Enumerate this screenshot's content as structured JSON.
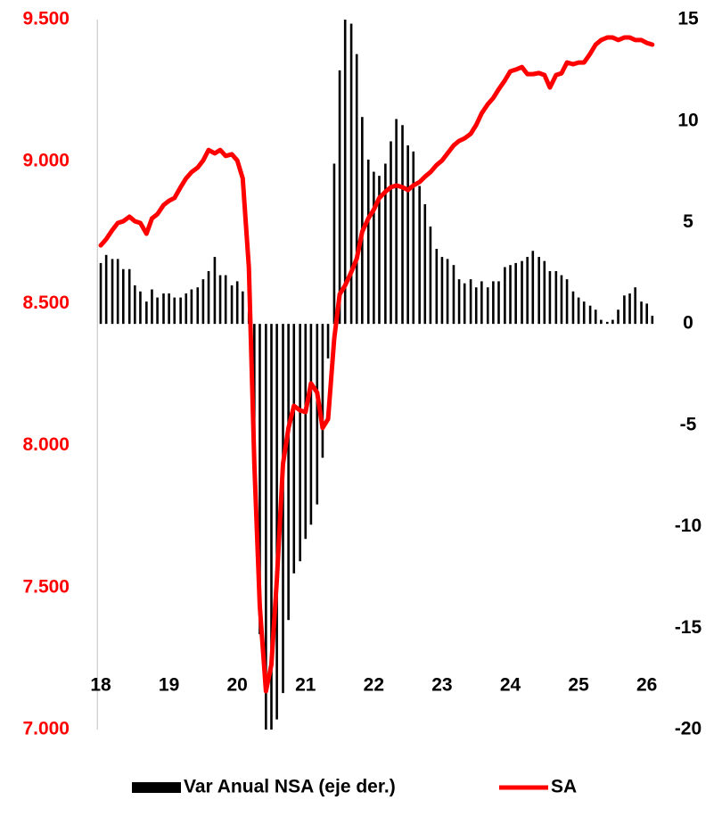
{
  "chart_data": {
    "type": "combo",
    "x": [
      18.0,
      18.08,
      18.17,
      18.25,
      18.33,
      18.42,
      18.5,
      18.58,
      18.67,
      18.75,
      18.83,
      18.92,
      19.0,
      19.08,
      19.17,
      19.25,
      19.33,
      19.42,
      19.5,
      19.58,
      19.67,
      19.75,
      19.83,
      19.92,
      20.0,
      20.08,
      20.17,
      20.25,
      20.33,
      20.42,
      20.5,
      20.58,
      20.67,
      20.75,
      20.83,
      20.92,
      21.0,
      21.08,
      21.17,
      21.25,
      21.33,
      21.42,
      21.5,
      21.58,
      21.67,
      21.75,
      21.83,
      21.92,
      22.0,
      22.08,
      22.17,
      22.25,
      22.33,
      22.42,
      22.5,
      22.58,
      22.67,
      22.75,
      22.83,
      22.92,
      23.0,
      23.08,
      23.17,
      23.25,
      23.33,
      23.42,
      23.5,
      23.58,
      23.67,
      23.75,
      23.83,
      23.92,
      24.0,
      24.08,
      24.17,
      24.25,
      24.33,
      24.42,
      24.5,
      24.58,
      24.67,
      24.75,
      24.83,
      24.92,
      25.0,
      25.08,
      25.17,
      25.25,
      25.33,
      25.42,
      25.5,
      25.58,
      25.67,
      25.75,
      25.83,
      25.92,
      26.0,
      26.08
    ],
    "series": [
      {
        "name": "Var Anual NSA (eje der.)",
        "type": "bar",
        "axis": "y2",
        "color": "#000000",
        "values": [
          3.0,
          3.4,
          3.2,
          3.2,
          2.7,
          2.7,
          1.9,
          1.6,
          1.1,
          1.7,
          1.3,
          1.5,
          1.5,
          1.3,
          1.3,
          1.5,
          1.7,
          1.8,
          2.2,
          2.6,
          3.3,
          2.4,
          2.4,
          1.9,
          2.1,
          1.6,
          0.6,
          -7.6,
          -15.3,
          -20,
          -20,
          -19.5,
          -18.2,
          -14.6,
          -12.3,
          -11.7,
          -10.6,
          -9.9,
          -8.9,
          -6.6,
          -1.7,
          7.9,
          12.5,
          15,
          14.8,
          13.3,
          10.2,
          8.1,
          7.5,
          7.3,
          7.9,
          9.0,
          10.1,
          9.8,
          8.8,
          8.5,
          6.8,
          5.9,
          4.8,
          3.7,
          3.3,
          3.2,
          2.9,
          2.2,
          2.0,
          2.2,
          1.8,
          2.1,
          1.8,
          2.1,
          2.1,
          2.8,
          2.9,
          3.0,
          3.1,
          3.3,
          3.6,
          3.3,
          3.1,
          2.6,
          2.6,
          2.4,
          2.2,
          1.6,
          1.3,
          1.1,
          0.9,
          0.7,
          0.2,
          0.1,
          0.2,
          0.7,
          1.4,
          1.5,
          1.8,
          1.1,
          1.0,
          0.4
        ]
      },
      {
        "name": "SA",
        "type": "line",
        "axis": "y",
        "color": "#ff0000",
        "values": [
          8705,
          8727,
          8759,
          8784,
          8790,
          8806,
          8790,
          8784,
          8746,
          8800,
          8815,
          8847,
          8862,
          8872,
          8910,
          8941,
          8963,
          8979,
          9004,
          9041,
          9029,
          9041,
          9020,
          9026,
          9004,
          8941,
          8627,
          7936,
          7434,
          7135,
          7229,
          7528,
          7936,
          8062,
          8140,
          8124,
          8118,
          8219,
          8187,
          8062,
          8093,
          8376,
          8533,
          8564,
          8611,
          8658,
          8753,
          8800,
          8831,
          8872,
          8894,
          8910,
          8916,
          8910,
          8900,
          8916,
          8928,
          8947,
          8963,
          8988,
          9004,
          9029,
          9057,
          9073,
          9082,
          9098,
          9129,
          9170,
          9202,
          9224,
          9255,
          9286,
          9318,
          9324,
          9333,
          9308,
          9308,
          9312,
          9305,
          9261,
          9305,
          9311,
          9349,
          9343,
          9349,
          9349,
          9380,
          9412,
          9428,
          9437,
          9437,
          9428,
          9437,
          9437,
          9428,
          9428,
          9418,
          9412
        ]
      }
    ],
    "xlim": [
      17.95,
      26.2
    ],
    "xticks": [
      18,
      19,
      20,
      21,
      22,
      23,
      24,
      25,
      26
    ],
    "ylim": [
      7000,
      9500
    ],
    "yticks": [
      {
        "value": 7000,
        "label": "7.000"
      },
      {
        "value": 7500,
        "label": "7.500"
      },
      {
        "value": 8000,
        "label": "8.000"
      },
      {
        "value": 8500,
        "label": "8.500"
      },
      {
        "value": 9000,
        "label": "9.000"
      },
      {
        "value": 9500,
        "label": "9.500"
      }
    ],
    "y2lim": [
      -20,
      15
    ],
    "y2ticks": [
      -20,
      -15,
      -10,
      -5,
      0,
      5,
      10,
      15
    ],
    "ytick_color": "#ff0000",
    "y2tick_color": "#000000",
    "legend": "bottom"
  }
}
